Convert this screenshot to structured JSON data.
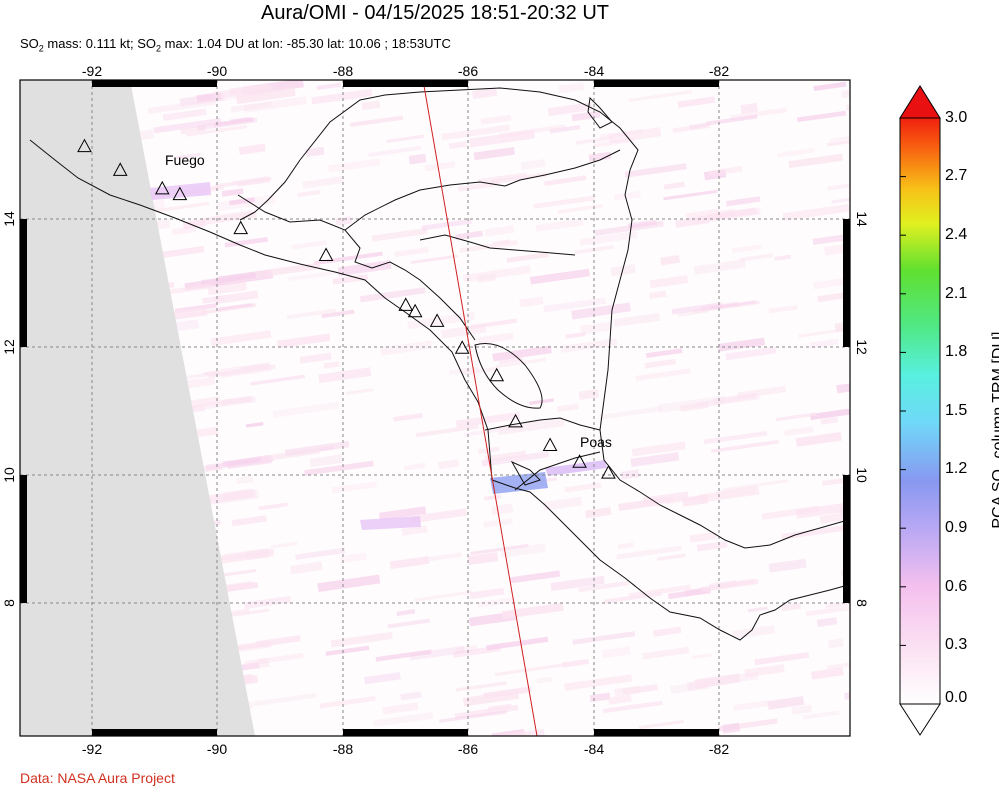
{
  "title": "Aura/OMI - 04/15/2025 18:51-20:32 UT",
  "subtitle": {
    "part1": "SO",
    "sub1": "2",
    "part2": " mass: 0.111 kt; SO",
    "sub2": "2",
    "part3": " max: 1.04 DU at lon: -85.30 lat: 10.06 ; 18:53UTC"
  },
  "credit": "Data: NASA Aura Project",
  "map": {
    "lon_ticks": [
      "-92",
      "-90",
      "-88",
      "-86",
      "-84",
      "-82"
    ],
    "lat_ticks": [
      "14",
      "12",
      "10",
      "8"
    ],
    "volcano_labels": [
      "Fuego",
      "Poas"
    ],
    "volcanoes": [
      {
        "lon": -92.12,
        "lat": 15.13
      },
      {
        "lon": -91.55,
        "lat": 14.76
      },
      {
        "lon": -90.88,
        "lat": 14.47
      },
      {
        "lon": -90.6,
        "lat": 14.38
      },
      {
        "lon": -89.63,
        "lat": 13.85
      },
      {
        "lon": -88.27,
        "lat": 13.43
      },
      {
        "lon": -87.0,
        "lat": 12.65
      },
      {
        "lon": -86.85,
        "lat": 12.55
      },
      {
        "lon": -86.5,
        "lat": 12.4
      },
      {
        "lon": -86.1,
        "lat": 11.98
      },
      {
        "lon": -85.55,
        "lat": 11.55
      },
      {
        "lon": -85.25,
        "lat": 10.83
      },
      {
        "lon": -84.7,
        "lat": 10.46
      },
      {
        "lon": -84.23,
        "lat": 10.2
      },
      {
        "lon": -83.77,
        "lat": 10.03
      }
    ]
  },
  "colorbar": {
    "ticks": [
      "3.0",
      "2.7",
      "2.4",
      "2.1",
      "1.8",
      "1.5",
      "1.2",
      "0.9",
      "0.6",
      "0.3",
      "0.0"
    ],
    "label_pre": "PCA SO",
    "label_sub": "2",
    "label_post": " column TRM [DU]",
    "colors": [
      "#ffffff",
      "#fcd8f0",
      "#e0b0f0",
      "#8890f0",
      "#60c8f8",
      "#58f0e8",
      "#60f0a0",
      "#60e040",
      "#c0f020",
      "#f8f020",
      "#f8a018",
      "#f83010",
      "#e81010"
    ]
  }
}
